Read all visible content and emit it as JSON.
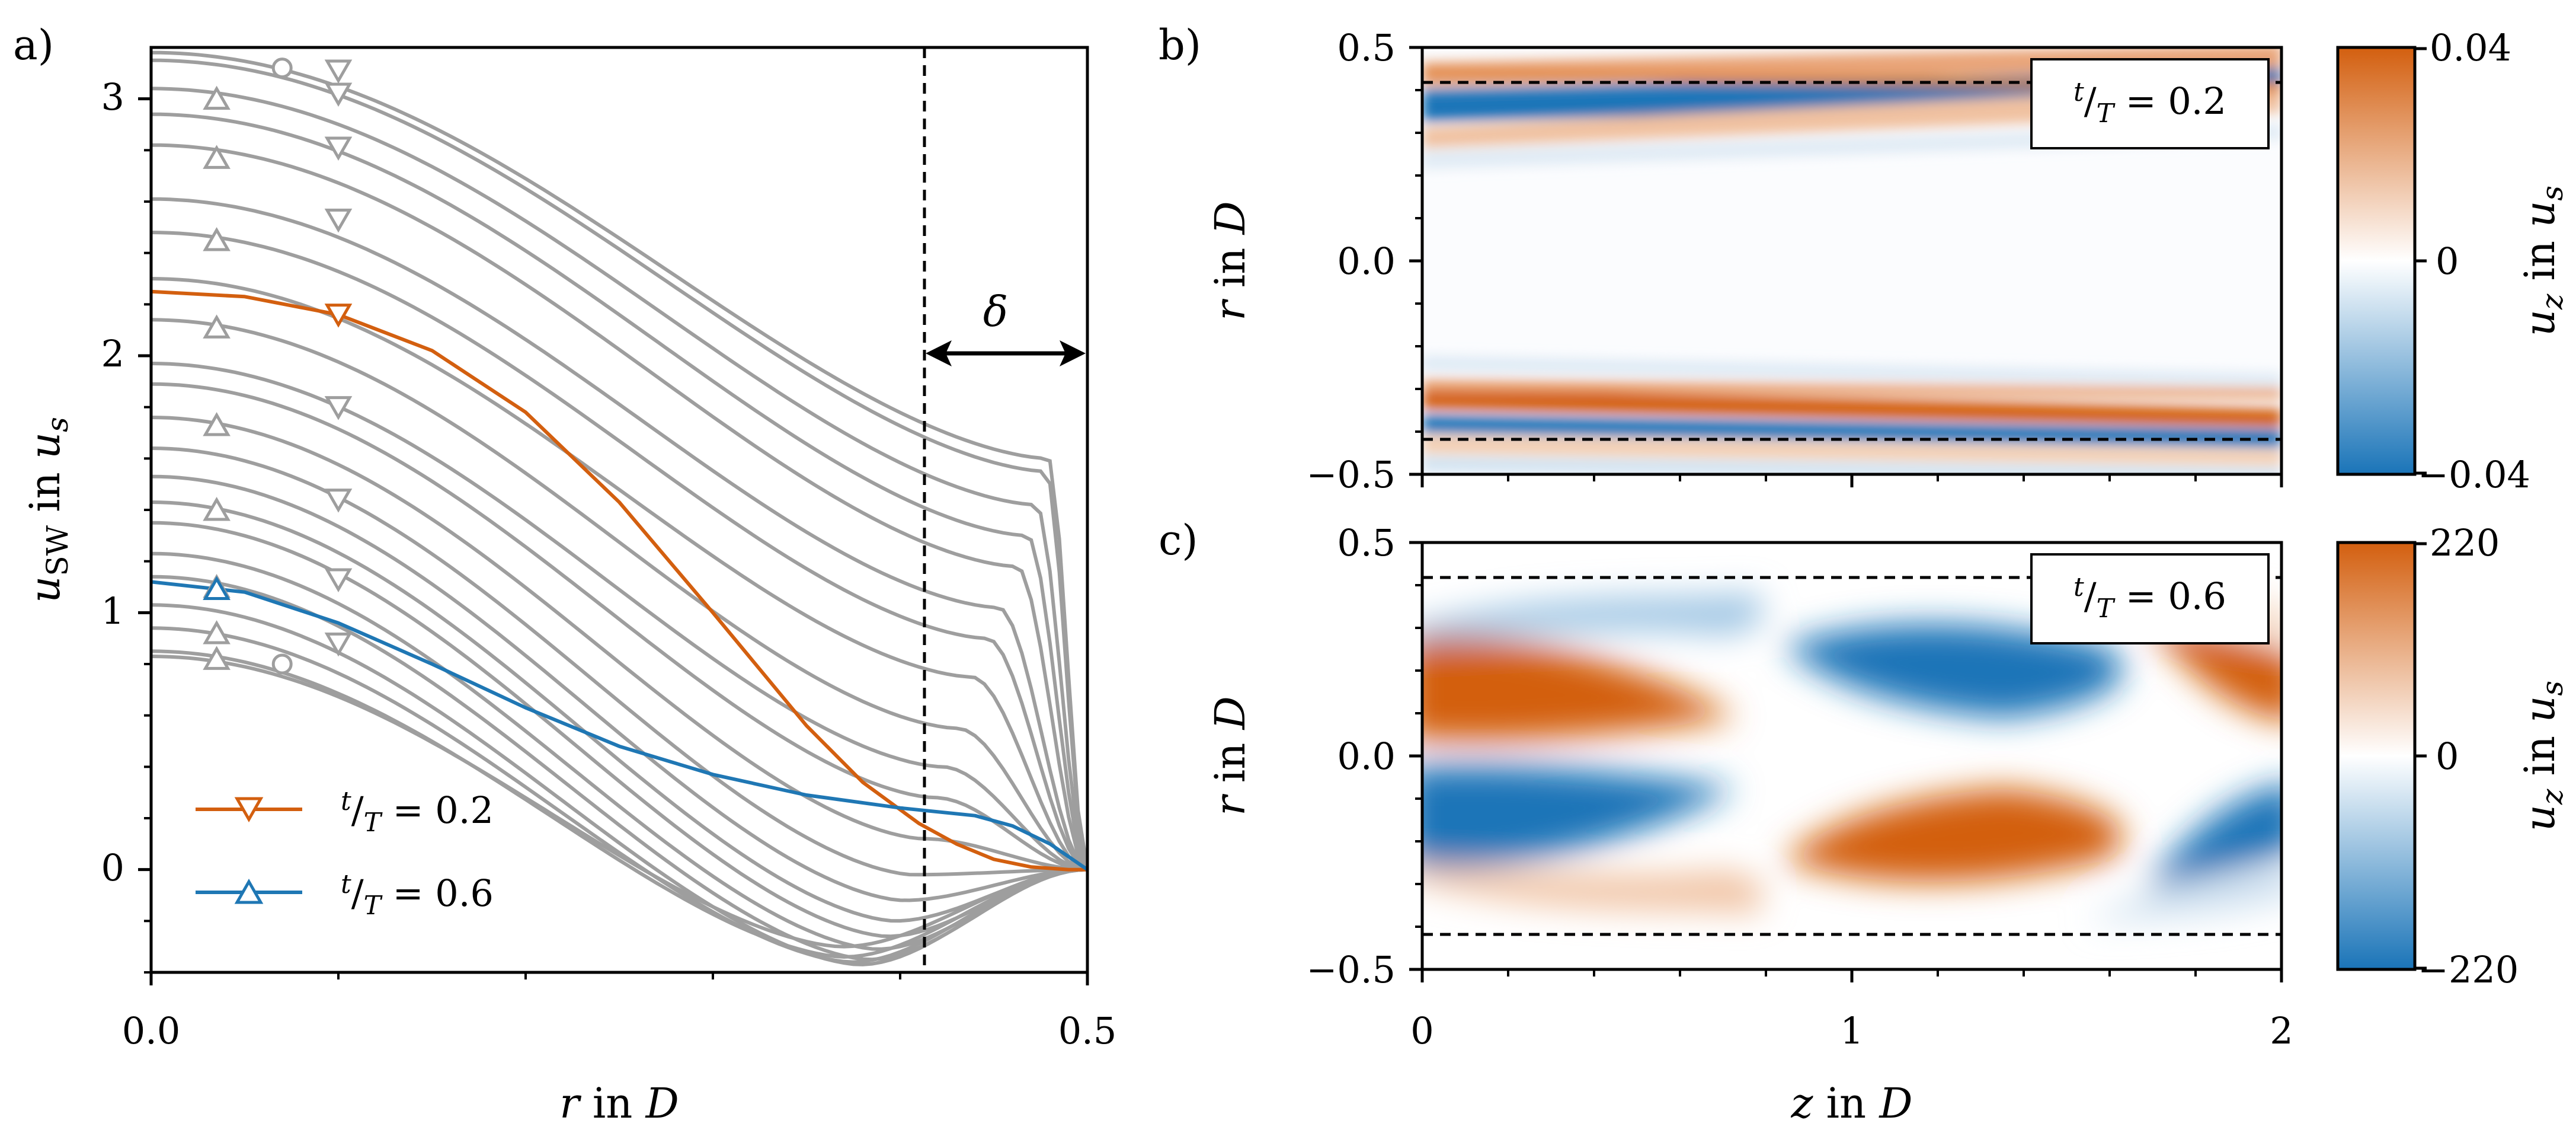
{
  "colors": {
    "grey": "#9e9e9e",
    "orange": "#d35f0f",
    "blue": "#1f77b4",
    "cmap_neg": "#1a74b8",
    "cmap_mid": "#ffffff",
    "cmap_pos": "#d35f0f"
  },
  "panels": {
    "a": "a)",
    "b": "b)",
    "c": "c)"
  },
  "chart_data": [
    {
      "id": "a",
      "type": "line",
      "xlabel": "r in D",
      "ylabel": "u_SW in u_s",
      "xlim": [
        0,
        0.5
      ],
      "ylim": [
        -0.4,
        3.2
      ],
      "xticks": [
        "0.0",
        "0.5"
      ],
      "yticks": [
        "0",
        "1",
        "2",
        "3"
      ],
      "xtick_values": [
        0,
        0.5
      ],
      "ytick_values": [
        0,
        1,
        2,
        3
      ],
      "grey_centerlines": [
        3.18,
        3.15,
        3.04,
        2.94,
        2.82,
        2.61,
        2.48,
        2.3,
        2.14,
        1.97,
        1.89,
        1.76,
        1.64,
        1.53,
        1.43,
        1.35,
        1.23,
        1.14,
        1.03,
        0.94,
        0.85,
        0.83
      ],
      "grey_minvalues": [
        1.6,
        1.55,
        1.42,
        1.3,
        1.18,
        1.02,
        0.9,
        0.75,
        0.55,
        0.4,
        0.28,
        0.12,
        -0.02,
        -0.12,
        -0.2,
        -0.26,
        -0.31,
        -0.35,
        -0.37,
        -0.36,
        -0.34,
        -0.3
      ],
      "markers_circle": [
        {
          "r": 0.07,
          "u": 3.12
        },
        {
          "r": 0.07,
          "u": 0.8
        }
      ],
      "markers_down": [
        {
          "r": 0.1,
          "u": 3.11
        },
        {
          "r": 0.1,
          "u": 3.02
        },
        {
          "r": 0.1,
          "u": 2.81
        },
        {
          "r": 0.1,
          "u": 2.53
        },
        {
          "r": 0.1,
          "u": 1.8
        },
        {
          "r": 0.1,
          "u": 1.44
        },
        {
          "r": 0.1,
          "u": 1.13
        },
        {
          "r": 0.1,
          "u": 0.88
        }
      ],
      "markers_up": [
        {
          "r": 0.035,
          "u": 3.0
        },
        {
          "r": 0.035,
          "u": 2.77
        },
        {
          "r": 0.035,
          "u": 2.45
        },
        {
          "r": 0.035,
          "u": 2.11
        },
        {
          "r": 0.035,
          "u": 1.73
        },
        {
          "r": 0.035,
          "u": 1.4
        },
        {
          "r": 0.035,
          "u": 1.1
        },
        {
          "r": 0.035,
          "u": 0.92
        },
        {
          "r": 0.035,
          "u": 0.82
        }
      ],
      "series": [
        {
          "name": "t/T = 0.2",
          "color": "orange",
          "marker": "down-triangle",
          "marker_r": 0.1,
          "r": [
            0,
            0.05,
            0.1,
            0.15,
            0.2,
            0.25,
            0.3,
            0.35,
            0.38,
            0.41,
            0.43,
            0.45,
            0.47,
            0.49,
            0.5
          ],
          "u": [
            2.25,
            2.23,
            2.16,
            2.02,
            1.78,
            1.43,
            1.0,
            0.56,
            0.34,
            0.18,
            0.1,
            0.04,
            0.01,
            0.0,
            0.0
          ]
        },
        {
          "name": "t/T = 0.6",
          "color": "blue",
          "marker": "up-triangle",
          "marker_r": 0.035,
          "r": [
            0,
            0.05,
            0.1,
            0.15,
            0.2,
            0.25,
            0.3,
            0.35,
            0.4,
            0.44,
            0.46,
            0.48,
            0.5
          ],
          "u": [
            1.12,
            1.08,
            0.96,
            0.8,
            0.63,
            0.48,
            0.37,
            0.29,
            0.24,
            0.21,
            0.17,
            0.1,
            0.0
          ]
        }
      ],
      "vline_r": 0.412,
      "annotation": "δ",
      "annotation_u": 2.0,
      "legend": [
        {
          "label": "t/T = 0.2",
          "color": "orange",
          "marker": "down-triangle"
        },
        {
          "label": "t/T = 0.6",
          "color": "blue",
          "marker": "up-triangle"
        }
      ]
    },
    {
      "id": "b",
      "type": "heatmap",
      "xlabel": "z in D",
      "ylabel": "r in D",
      "xlim": [
        0,
        2
      ],
      "ylim": [
        -0.5,
        0.5
      ],
      "yticks": [
        "0.5",
        "0.0",
        "−0.5"
      ],
      "ytick_values": [
        0.5,
        0.0,
        -0.5
      ],
      "label": "t/T = 0.2",
      "dashed_r": [
        0.41,
        -0.41
      ],
      "colorbar": {
        "label": "u_z in u_s",
        "ticks": [
          "0.04",
          "0",
          "−0.04"
        ],
        "min": -0.04,
        "max": 0.04
      }
    },
    {
      "id": "c",
      "type": "heatmap",
      "xlabel": "z in D",
      "ylabel": "r in D",
      "xlim": [
        0,
        2
      ],
      "ylim": [
        -0.5,
        0.5
      ],
      "xticks": [
        "0",
        "1",
        "2"
      ],
      "xtick_values": [
        0,
        1,
        2
      ],
      "yticks": [
        "0.5",
        "0.0",
        "−0.5"
      ],
      "ytick_values": [
        0.5,
        0.0,
        -0.5
      ],
      "label": "t/T = 0.6",
      "dashed_r": [
        0.41,
        -0.41
      ],
      "colorbar": {
        "label": "u_z in u_s",
        "ticks": [
          "220",
          "0",
          "−220"
        ],
        "min": -220,
        "max": 220
      }
    }
  ]
}
